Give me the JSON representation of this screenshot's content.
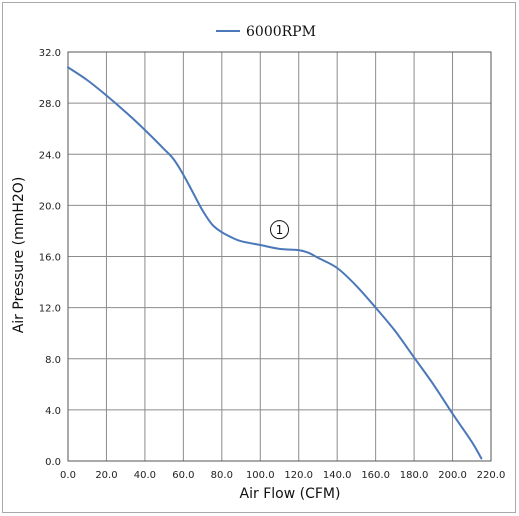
{
  "chart_data": {
    "type": "line",
    "title": "",
    "xlabel": "Air Flow (CFM)",
    "ylabel": "Air Pressure (mmH2O)",
    "xlim": [
      0,
      220
    ],
    "ylim": [
      0,
      32
    ],
    "grid": true,
    "legend_position": "top-center",
    "x_ticks": [
      "0.0",
      "20.0",
      "40.0",
      "60.0",
      "80.0",
      "100.0",
      "120.0",
      "140.0",
      "160.0",
      "180.0",
      "200.0",
      "220.0"
    ],
    "y_ticks": [
      "0.0",
      "4.0",
      "8.0",
      "12.0",
      "16.0",
      "20.0",
      "24.0",
      "28.0",
      "32.0"
    ],
    "series": [
      {
        "name": "6000RPM",
        "color": "#4a78b8",
        "x": [
          0,
          10,
          20,
          30,
          40,
          50,
          55,
          60,
          65,
          70,
          75,
          80,
          85,
          90,
          100,
          110,
          120,
          125,
          130,
          140,
          150,
          160,
          170,
          180,
          190,
          200,
          210,
          215
        ],
        "y": [
          30.8,
          29.8,
          28.6,
          27.3,
          25.9,
          24.4,
          23.6,
          22.4,
          21.0,
          19.6,
          18.5,
          17.9,
          17.5,
          17.2,
          16.9,
          16.6,
          16.5,
          16.3,
          15.9,
          15.1,
          13.7,
          12.0,
          10.2,
          8.1,
          6.0,
          3.7,
          1.5,
          0.2
        ]
      }
    ],
    "annotations": [
      {
        "text": "1",
        "x": 110,
        "y": 18.1,
        "shape": "circle"
      }
    ]
  }
}
